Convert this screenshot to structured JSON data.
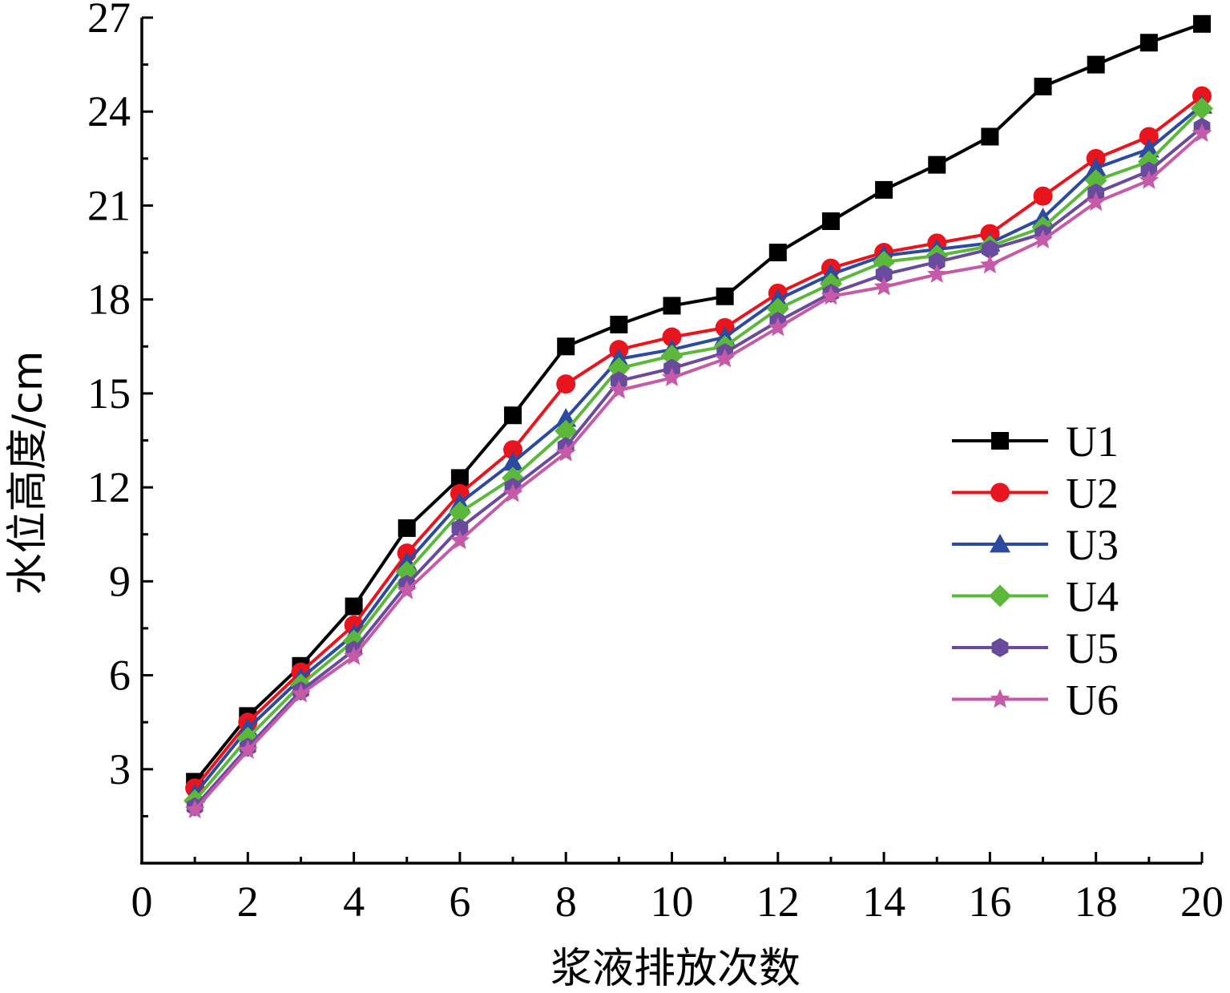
{
  "chart_data": {
    "type": "line",
    "title": "",
    "xlabel": "浆液排放次数",
    "ylabel": "水位高度/cm",
    "xlim": [
      0,
      20
    ],
    "ylim": [
      0,
      27
    ],
    "x_ticks": [
      0,
      2,
      4,
      6,
      8,
      10,
      12,
      14,
      16,
      18,
      20
    ],
    "y_ticks": [
      3,
      6,
      9,
      12,
      15,
      18,
      21,
      24,
      27
    ],
    "grid": false,
    "legend_position": "right-center",
    "x": [
      1,
      2,
      3,
      4,
      5,
      6,
      7,
      8,
      9,
      10,
      11,
      12,
      13,
      14,
      15,
      16,
      17,
      18,
      19,
      20
    ],
    "series": [
      {
        "name": "U1",
        "color": "#000000",
        "marker": "square",
        "values": [
          2.6,
          4.7,
          6.3,
          8.2,
          10.7,
          12.3,
          14.3,
          16.5,
          17.2,
          17.8,
          18.1,
          19.5,
          20.5,
          21.5,
          22.3,
          23.2,
          24.8,
          25.5,
          26.2,
          26.8
        ]
      },
      {
        "name": "U2",
        "color": "#e8141e",
        "marker": "circle",
        "values": [
          2.4,
          4.5,
          6.1,
          7.6,
          9.9,
          11.8,
          13.2,
          15.3,
          16.4,
          16.8,
          17.1,
          18.2,
          19.0,
          19.5,
          19.8,
          20.1,
          21.3,
          22.5,
          23.2,
          24.5
        ]
      },
      {
        "name": "U3",
        "color": "#2b4aa0",
        "marker": "triangle",
        "values": [
          2.2,
          4.3,
          5.9,
          7.3,
          9.6,
          11.5,
          12.8,
          14.2,
          16.1,
          16.4,
          16.8,
          18.0,
          18.8,
          19.4,
          19.6,
          19.8,
          20.6,
          22.2,
          22.8,
          24.2
        ]
      },
      {
        "name": "U4",
        "color": "#5cb83a",
        "marker": "diamond",
        "values": [
          2.0,
          4.0,
          5.7,
          7.1,
          9.3,
          11.2,
          12.3,
          13.8,
          15.8,
          16.2,
          16.5,
          17.7,
          18.5,
          19.2,
          19.4,
          19.7,
          20.3,
          21.8,
          22.4,
          24.1
        ]
      },
      {
        "name": "U5",
        "color": "#6a4a9c",
        "marker": "hexagon",
        "values": [
          1.8,
          3.7,
          5.5,
          6.8,
          8.9,
          10.7,
          12.0,
          13.3,
          15.4,
          15.8,
          16.3,
          17.3,
          18.2,
          18.8,
          19.2,
          19.6,
          20.1,
          21.4,
          22.1,
          23.5
        ]
      },
      {
        "name": "U6",
        "color": "#c45aa8",
        "marker": "star",
        "values": [
          1.7,
          3.6,
          5.4,
          6.6,
          8.7,
          10.3,
          11.8,
          13.1,
          15.1,
          15.5,
          16.1,
          17.1,
          18.1,
          18.4,
          18.8,
          19.1,
          19.9,
          21.1,
          21.8,
          23.3
        ]
      }
    ]
  }
}
